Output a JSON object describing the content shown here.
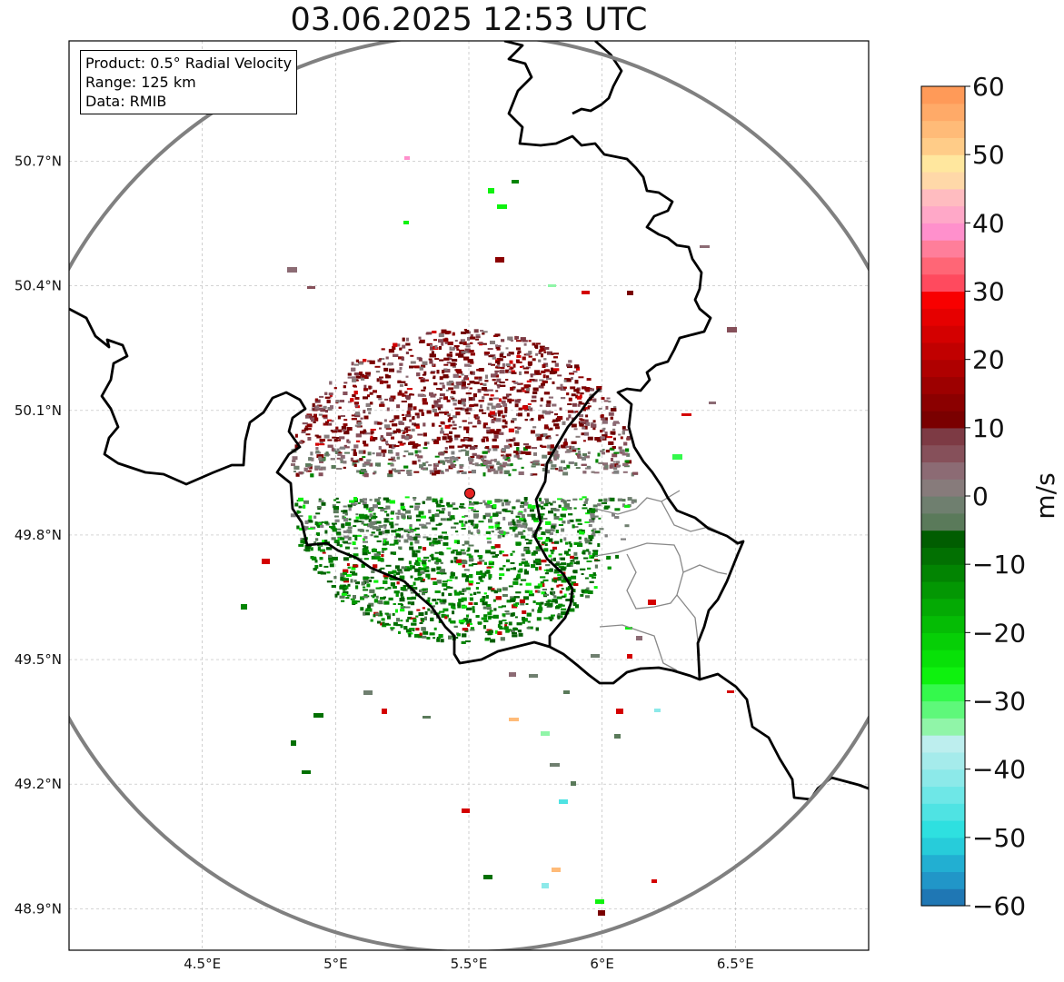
{
  "title": "03.06.2025 12:53 UTC",
  "info_box": {
    "product": "Product: 0.5° Radial Velocity",
    "range": "Range: 125 km",
    "data": "Data: RMIB"
  },
  "map": {
    "lat_ticks": [
      {
        "value": 50.7,
        "label": "50.7°N"
      },
      {
        "value": 50.4,
        "label": "50.4°N"
      },
      {
        "value": 50.1,
        "label": "50.1°N"
      },
      {
        "value": 49.8,
        "label": "49.8°N"
      },
      {
        "value": 49.5,
        "label": "49.5°N"
      },
      {
        "value": 49.2,
        "label": "49.2°N"
      },
      {
        "value": 48.9,
        "label": "48.9°N"
      }
    ],
    "lon_ticks": [
      {
        "value": 4.5,
        "label": "4.5°E"
      },
      {
        "value": 5.0,
        "label": "5°E"
      },
      {
        "value": 5.5,
        "label": "5.5°E"
      },
      {
        "value": 6.0,
        "label": "6°E"
      },
      {
        "value": 6.5,
        "label": "6.5°E"
      }
    ],
    "lon_range": [
      4.0,
      7.0
    ],
    "lat_range": [
      48.8,
      50.99
    ],
    "radar_site": {
      "lon": 5.505,
      "lat": 49.915
    },
    "range_km": 125
  },
  "colorbar": {
    "unit": "m/s",
    "range": [
      -60,
      60
    ],
    "ticks": [
      "60",
      "50",
      "40",
      "30",
      "20",
      "10",
      "0",
      "−10",
      "−20",
      "−30",
      "−40",
      "−50",
      "−60"
    ],
    "tick_values": [
      60,
      50,
      40,
      30,
      20,
      10,
      0,
      -10,
      -20,
      -30,
      -40,
      -50,
      -60
    ],
    "colors": [
      "#1f77b4",
      "#2196c8",
      "#22afd2",
      "#27ccda",
      "#2ee0e0",
      "#4fe3e3",
      "#6ee7e7",
      "#8ce9e9",
      "#a5ebeb",
      "#bdeeee",
      "#90f5a8",
      "#5ef87a",
      "#34f94c",
      "#0ef20e",
      "#08e108",
      "#06cf06",
      "#05bc05",
      "#04aa04",
      "#039703",
      "#028402",
      "#027002",
      "#015d01",
      "#5a7a5a",
      "#6f7f6f",
      "#877b7b",
      "#8c6b74",
      "#86505a",
      "#7d3a44",
      "#7a0000",
      "#8b0000",
      "#9d0000",
      "#af0000",
      "#c10000",
      "#d40000",
      "#e60000",
      "#f80000",
      "#ff4a5e",
      "#ff6676",
      "#ff7e9a",
      "#ff90cc",
      "#ffa8c8",
      "#ffbcc0",
      "#ffd8a8",
      "#ffe79e",
      "#ffcc88",
      "#ffbb78",
      "#ffaa68",
      "#ff9a58"
    ]
  }
}
